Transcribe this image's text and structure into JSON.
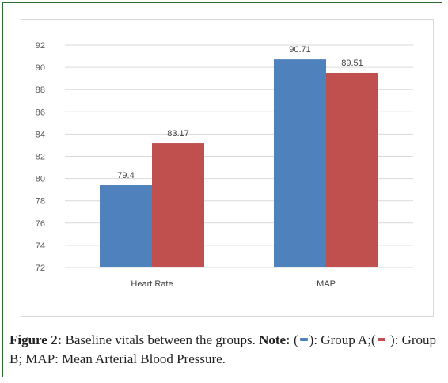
{
  "chart_data": {
    "type": "bar",
    "categories": [
      "Heart Rate",
      "MAP"
    ],
    "series": [
      {
        "values": [
          79.4,
          90.71
        ],
        "color": "#4f81bd"
      },
      {
        "values": [
          83.17,
          89.51
        ],
        "color": "#c0504d"
      }
    ],
    "data_labels": [
      [
        "79.4",
        "90.71"
      ],
      [
        "83.17",
        "89.51"
      ]
    ],
    "ylim": [
      72,
      92
    ],
    "yticks": [
      72,
      74,
      76,
      78,
      80,
      82,
      84,
      86,
      88,
      90,
      92
    ],
    "grid": true
  },
  "caption": {
    "figure_label": "Figure 2:",
    "figure_text": " Baseline vitals between the groups. ",
    "note_label": "Note:",
    "open_paren_a": " (",
    "group_a_text": "): Group A;(",
    "group_b_text": " ): Group B; MAP: Mean Arterial Blood Pressure."
  },
  "colors": {
    "group_a": "#4f81bd",
    "group_b": "#c0504d",
    "frame": "#2e6b2e"
  }
}
